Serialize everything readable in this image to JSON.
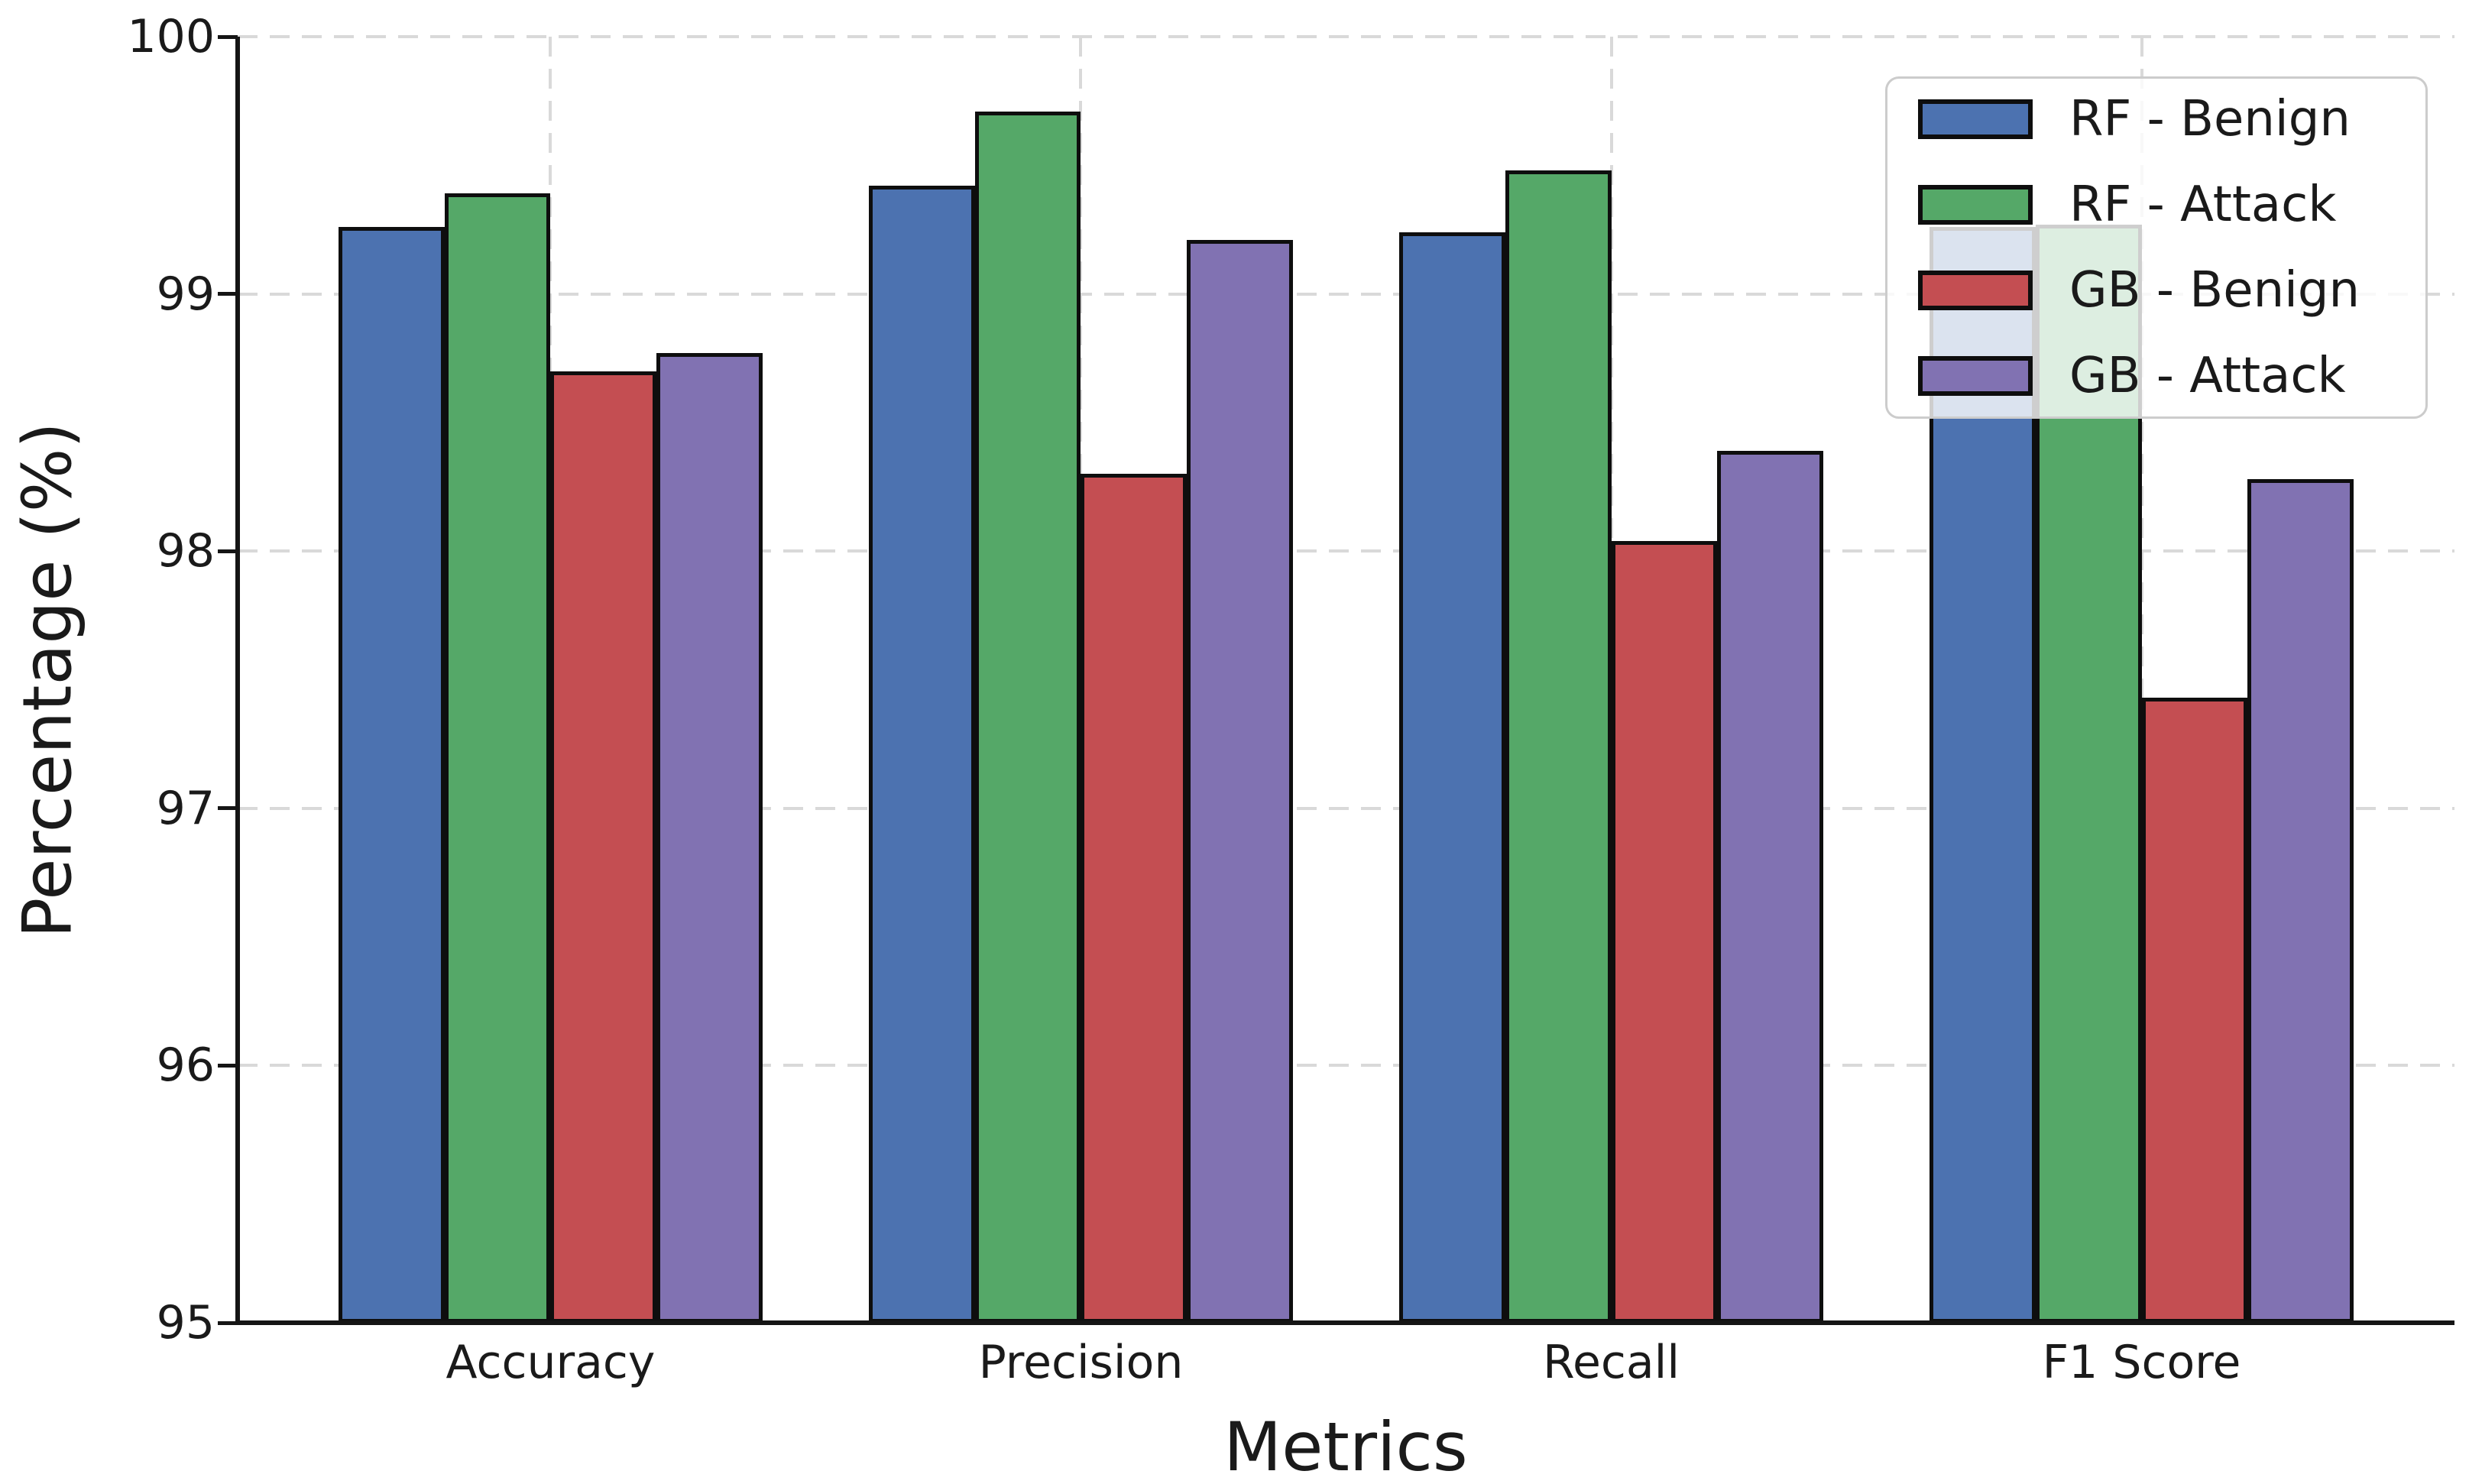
{
  "chart_data": {
    "type": "bar",
    "title": "",
    "xlabel": "Metrics",
    "ylabel": "Percentage (%)",
    "categories": [
      "Accuracy",
      "Precision",
      "Recall",
      "F1 Score"
    ],
    "series": [
      {
        "name": "RF - Benign",
        "color": "#4C72B0",
        "values": [
          99.26,
          99.42,
          99.24,
          99.26
        ]
      },
      {
        "name": "RF - Attack",
        "color": "#55A868",
        "values": [
          99.39,
          99.71,
          99.48,
          99.27
        ]
      },
      {
        "name": "GB - Benign",
        "color": "#C44E52",
        "values": [
          98.7,
          98.3,
          98.04,
          97.43
        ]
      },
      {
        "name": "GB - Attack",
        "color": "#8172B2",
        "values": [
          98.77,
          99.21,
          98.39,
          98.28
        ]
      }
    ],
    "ylim": [
      95,
      100
    ],
    "yticks": [
      95,
      96,
      97,
      98,
      99,
      100
    ],
    "xlim": [
      -0.59,
      3.59
    ],
    "bar_group_width": 0.8,
    "grid": "both-dashed",
    "grid_color": "#d9d9d9",
    "bar_edge_color": "#0e0e0e",
    "legend_position": "upper right",
    "legend_bg_alpha": 0.8
  }
}
